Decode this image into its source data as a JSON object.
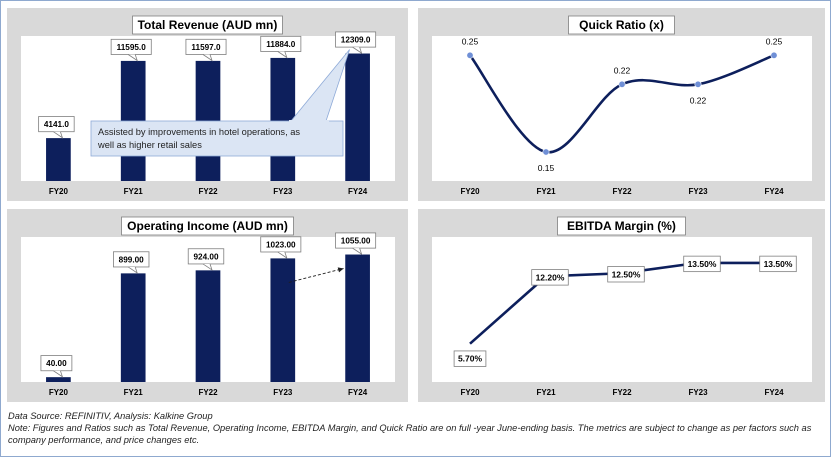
{
  "chart_data": [
    {
      "id": "revenue",
      "type": "bar",
      "title": "Total Revenue (AUD mn)",
      "categories": [
        "FY20",
        "FY21",
        "FY22",
        "FY23",
        "FY24"
      ],
      "values": [
        4141.0,
        11595.0,
        11597.0,
        11884.0,
        12309.0
      ],
      "labels": [
        "4141.0",
        "11595.0",
        "11597.0",
        "11884.0",
        "12309.0"
      ],
      "ylim": [
        0,
        14000
      ],
      "color": "#0d1f5c",
      "annotation": {
        "lines": [
          "Assisted by improvements in hotel operations, as",
          "well as higher retail sales"
        ],
        "points_to": "FY24"
      }
    },
    {
      "id": "quick",
      "type": "line",
      "title": "Quick Ratio (x)",
      "categories": [
        "FY20",
        "FY21",
        "FY22",
        "FY23",
        "FY24"
      ],
      "values": [
        0.25,
        0.15,
        0.22,
        0.22,
        0.25
      ],
      "labels": [
        "0.25",
        "0.15",
        "0.22",
        "0.22",
        "0.25"
      ],
      "label_side": [
        "above",
        "below",
        "above",
        "below",
        "above"
      ],
      "ylim": [
        0.12,
        0.27
      ],
      "smooth": true,
      "color": "#0d1f5c",
      "marker_color": "#6f8fd6"
    },
    {
      "id": "opinc",
      "type": "bar",
      "title": "Operating Income (AUD mn)",
      "categories": [
        "FY20",
        "FY21",
        "FY22",
        "FY23",
        "FY24"
      ],
      "values": [
        40.0,
        899.0,
        924.0,
        1023.0,
        1055.0
      ],
      "labels": [
        "40.00",
        "899.00",
        "924.00",
        "1023.00",
        "1055.00"
      ],
      "ylim": [
        0,
        1200
      ],
      "color": "#0d1f5c",
      "arrow_from": "FY23",
      "arrow_to": "FY24"
    },
    {
      "id": "ebitda",
      "type": "line",
      "title": "EBITDA Margin (%)",
      "categories": [
        "FY20",
        "FY21",
        "FY22",
        "FY23",
        "FY24"
      ],
      "values": [
        5.7,
        12.2,
        12.5,
        13.5,
        13.5
      ],
      "labels": [
        "5.70%",
        "12.20%",
        "12.50%",
        "13.50%",
        "13.50%"
      ],
      "ylim": [
        2,
        16
      ],
      "smooth": false,
      "color": "#0d1f5c"
    }
  ],
  "footer": {
    "source": "Data Source: REFINITIV, Analysis: Kalkine Group",
    "note": "Note: Figures and Ratios such as Total Revenue, Operating Income, EBITDA Margin, and Quick Ratio are on full -year June-ending basis. The metrics are subject to change as per factors such as company performance, and price changes etc."
  }
}
